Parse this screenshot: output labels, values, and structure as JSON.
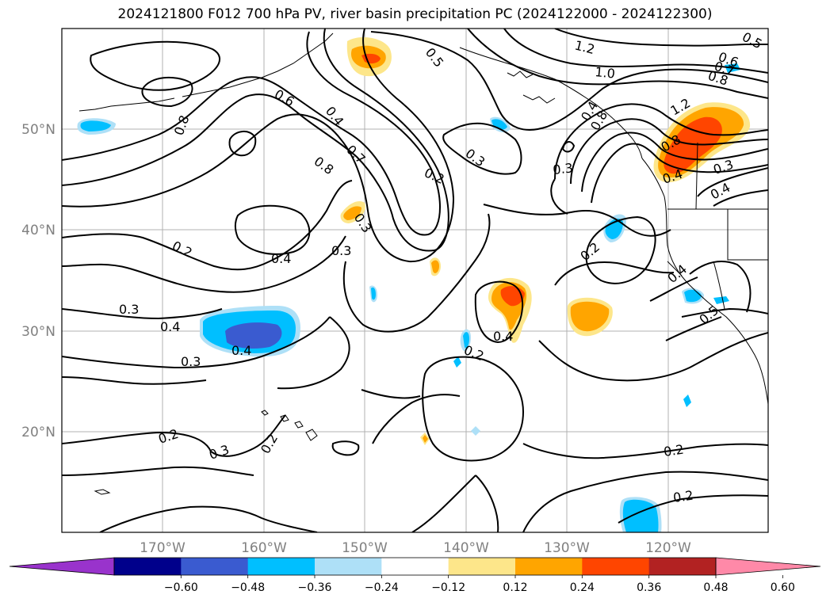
{
  "title": "2024121800 F012 700 hPa PV, river basin precipitation PC (2024122000 - 2024122300)",
  "lat_labels": [
    "50°N",
    "40°N",
    "30°N",
    "20°N"
  ],
  "lon_labels": [
    "170°W",
    "160°W",
    "150°W",
    "140°W",
    "130°W",
    "120°W"
  ],
  "contour_labels": [
    "0.5",
    "1.2",
    "0.6",
    "0.7",
    "0.8",
    "1.0",
    "0.8",
    "0.6",
    "0.4",
    "0.5",
    "0.7",
    "0.8",
    "1.2",
    "0.8",
    "0.3",
    "0.2",
    "0.3",
    "0.3",
    "0.4",
    "0.3",
    "0.2",
    "0.4",
    "0.3",
    "0.4",
    "0.4",
    "0.3",
    "0.2",
    "0.2",
    "0.2",
    "0.4",
    "0.4",
    "0.2",
    "0.3",
    "0.2",
    "0.2",
    "0.4",
    "0.5",
    "0.3",
    "0.4",
    "0.8"
  ],
  "colorbar": {
    "ticks": [
      "−0.60",
      "−0.48",
      "−0.36",
      "−0.24",
      "−0.12",
      "0.12",
      "0.24",
      "0.36",
      "0.48",
      "0.60"
    ],
    "colors": [
      "#9933cc",
      "#00008b",
      "#3a5bd0",
      "#00bfff",
      "#aee0f7",
      "#ffffff",
      "#fde68a",
      "#ffa500",
      "#ff4500",
      "#b22222",
      "#ff89a8"
    ]
  }
}
